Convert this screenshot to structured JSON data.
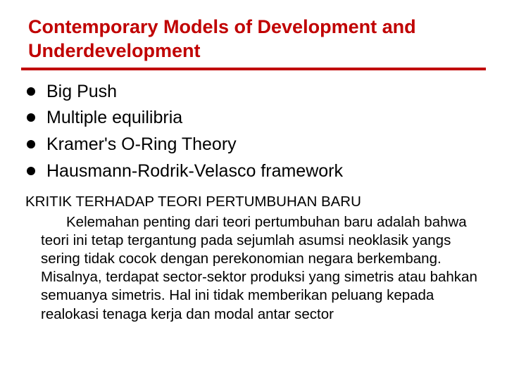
{
  "slide": {
    "title": "Contemporary Models of Development and Underdevelopment",
    "title_color": "#c00000",
    "title_fontsize": 27,
    "rule_color": "#c00000",
    "rule_thickness": 4,
    "bullets": {
      "items": [
        "Big Push",
        "Multiple equilibria",
        "Kramer's O-Ring Theory",
        "Hausmann-Rodrik-Velasco framework"
      ],
      "marker_color": "#000000",
      "marker_diameter": 12,
      "text_fontsize": 25,
      "text_color": "#000000"
    },
    "subheading": "KRITIK TERHADAP TEORI PERTUMBUHAN BARU",
    "subheading_fontsize": 20.5,
    "body": "Kelemahan penting dari teori pertumbuhan baru adalah bahwa teori ini tetap tergantung pada sejumlah asumsi neoklasik yangs sering tidak cocok dengan perekonomian negara berkembang. Misalnya, terdapat sector-sektor produksi yang simetris atau bahkan semuanya simetris. Hal ini tidak memberikan peluang kepada realokasi tenaga kerja dan modal antar sector",
    "body_fontsize": 20.5,
    "body_color": "#000000",
    "background_color": "#ffffff"
  }
}
